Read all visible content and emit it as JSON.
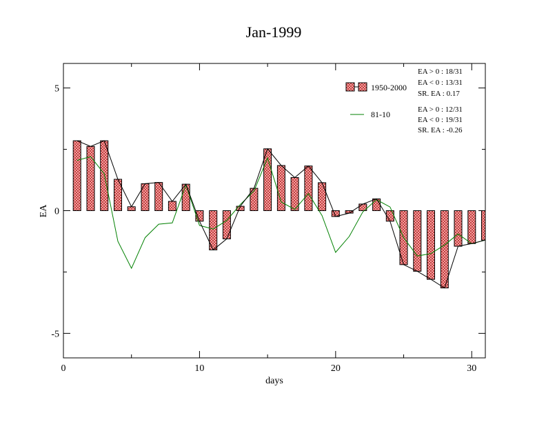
{
  "chart_data": {
    "type": "bar",
    "title": "Jan-1999",
    "xlabel": "days",
    "ylabel": "EA",
    "xlim": [
      0,
      31
    ],
    "ylim": [
      -6,
      6
    ],
    "xticks": [
      0,
      10,
      20,
      30
    ],
    "yticks": [
      -5,
      0,
      5
    ],
    "xtick_labels": [
      "0",
      "10",
      "20",
      "30"
    ],
    "ytick_labels": [
      "-5",
      "0",
      "5"
    ],
    "grid": false,
    "legend_position": "top-right",
    "x": [
      1,
      2,
      3,
      4,
      5,
      6,
      7,
      8,
      9,
      10,
      11,
      12,
      13,
      14,
      15,
      16,
      17,
      18,
      19,
      20,
      21,
      22,
      23,
      24,
      25,
      26,
      27,
      28,
      29,
      30,
      31
    ],
    "series": [
      {
        "name": "1950-2000",
        "kind": "bar+line",
        "color": "#f08080",
        "values": [
          2.85,
          2.62,
          2.85,
          1.28,
          0.16,
          1.1,
          1.15,
          0.38,
          1.08,
          -0.43,
          -1.6,
          -1.15,
          0.18,
          0.91,
          2.52,
          1.84,
          1.35,
          1.82,
          1.14,
          -0.24,
          -0.1,
          0.27,
          0.48,
          -0.43,
          -2.2,
          -2.47,
          -2.8,
          -3.15,
          -1.45,
          -1.34,
          -1.2
        ]
      },
      {
        "name": "81-10",
        "kind": "line",
        "color": "#008000",
        "values": [
          2.05,
          2.2,
          1.5,
          -1.25,
          -2.35,
          -1.1,
          -0.55,
          -0.5,
          1.05,
          -0.6,
          -0.75,
          -0.4,
          0.25,
          0.8,
          2.15,
          0.35,
          0.05,
          0.7,
          -0.2,
          -1.7,
          -1.05,
          -0.05,
          0.45,
          0.15,
          -1.1,
          -1.85,
          -1.75,
          -1.4,
          -0.95,
          -1.35,
          -1.2
        ]
      }
    ],
    "stats": [
      [
        "EA > 0 : 18/31",
        "EA < 0 : 13/31",
        "SR. EA :  0.17"
      ],
      [
        "EA > 0 : 12/31",
        "EA < 0 : 19/31",
        "SR. EA : -0.26"
      ]
    ]
  }
}
